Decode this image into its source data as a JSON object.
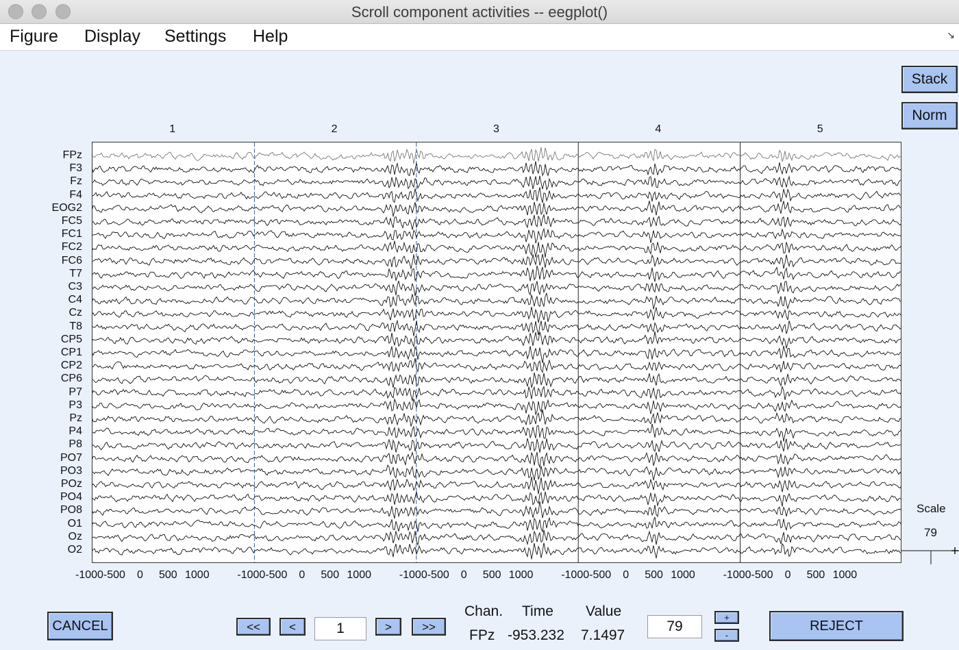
{
  "window": {
    "title": "Scroll component activities -- eegplot()"
  },
  "menu": [
    "Figure",
    "Display",
    "Settings",
    "Help"
  ],
  "side_buttons": {
    "stack": "Stack",
    "norm": "Norm"
  },
  "channels": [
    "FPz",
    "F3",
    "Fz",
    "F4",
    "EOG2",
    "FC5",
    "FC1",
    "FC2",
    "FC6",
    "T7",
    "C3",
    "C4",
    "Cz",
    "T8",
    "CP5",
    "CP1",
    "CP2",
    "CP6",
    "P7",
    "P3",
    "Pz",
    "P4",
    "P8",
    "PO7",
    "PO3",
    "POz",
    "PO4",
    "PO8",
    "O1",
    "Oz",
    "O2"
  ],
  "epochs": [
    "1",
    "2",
    "3",
    "4",
    "5"
  ],
  "x_ticks": [
    "-1000-500",
    "0",
    "500",
    "1000"
  ],
  "scale": {
    "label": "Scale",
    "value": "79"
  },
  "nav": {
    "first": "<<",
    "prev": "<",
    "page": "1",
    "next": ">",
    "last": ">>"
  },
  "readout": {
    "chan_label": "Chan.",
    "time_label": "Time",
    "value_label": "Value",
    "chan": "FPz",
    "time": "-953.232",
    "value": "7.1497"
  },
  "scale_input": "79",
  "scale_buttons": {
    "plus": "+",
    "minus": "-"
  },
  "cancel": "CANCEL",
  "reject": "REJECT"
}
